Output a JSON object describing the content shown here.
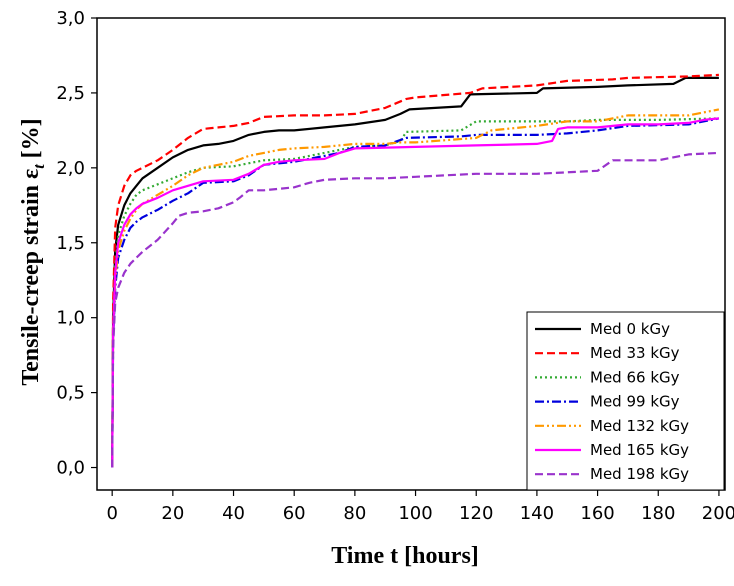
{
  "chart_data": {
    "type": "line",
    "xlabel": "Time t [hours]",
    "ylabel": "Tensile-creep strain ε",
    "ylabel_sub": "t",
    "ylabel_unit": " [%]",
    "xlim": [
      -5,
      202
    ],
    "ylim": [
      -0.15,
      3.0
    ],
    "xticks": [
      0,
      20,
      40,
      60,
      80,
      100,
      120,
      140,
      160,
      180,
      200
    ],
    "xtick_labels": [
      "0",
      "20",
      "40",
      "60",
      "80",
      "100",
      "120",
      "140",
      "160",
      "180",
      "200"
    ],
    "yticks": [
      0.0,
      0.5,
      1.0,
      1.5,
      2.0,
      2.5,
      3.0
    ],
    "ytick_labels": [
      "0,0",
      "0,5",
      "1,0",
      "1,5",
      "2,0",
      "2,5",
      "3,0"
    ],
    "grid": false,
    "legend_position": "bottom-right",
    "series": [
      {
        "name": "Med 0 kGy",
        "color": "#000000",
        "dash": "solid",
        "points": [
          [
            0,
            0.0
          ],
          [
            0.3,
            1.0
          ],
          [
            1,
            1.45
          ],
          [
            2,
            1.62
          ],
          [
            4,
            1.75
          ],
          [
            6,
            1.83
          ],
          [
            8,
            1.88
          ],
          [
            10,
            1.93
          ],
          [
            15,
            2.0
          ],
          [
            20,
            2.07
          ],
          [
            25,
            2.12
          ],
          [
            30,
            2.15
          ],
          [
            35,
            2.16
          ],
          [
            40,
            2.18
          ],
          [
            45,
            2.22
          ],
          [
            50,
            2.24
          ],
          [
            55,
            2.25
          ],
          [
            60,
            2.25
          ],
          [
            70,
            2.27
          ],
          [
            80,
            2.29
          ],
          [
            90,
            2.32
          ],
          [
            95,
            2.36
          ],
          [
            98,
            2.39
          ],
          [
            115,
            2.41
          ],
          [
            118,
            2.49
          ],
          [
            140,
            2.5
          ],
          [
            142,
            2.53
          ],
          [
            160,
            2.54
          ],
          [
            170,
            2.55
          ],
          [
            185,
            2.56
          ],
          [
            189,
            2.6
          ],
          [
            200,
            2.6
          ]
        ]
      },
      {
        "name": "Med 33 kGy",
        "color": "#ff0000",
        "dash": "dashed",
        "points": [
          [
            0,
            0.0
          ],
          [
            0.3,
            1.1
          ],
          [
            1,
            1.6
          ],
          [
            2,
            1.75
          ],
          [
            4,
            1.88
          ],
          [
            6,
            1.95
          ],
          [
            8,
            1.98
          ],
          [
            10,
            2.0
          ],
          [
            15,
            2.05
          ],
          [
            20,
            2.12
          ],
          [
            25,
            2.2
          ],
          [
            30,
            2.26
          ],
          [
            35,
            2.27
          ],
          [
            40,
            2.28
          ],
          [
            45,
            2.3
          ],
          [
            50,
            2.34
          ],
          [
            60,
            2.35
          ],
          [
            70,
            2.35
          ],
          [
            80,
            2.36
          ],
          [
            90,
            2.4
          ],
          [
            97,
            2.46
          ],
          [
            100,
            2.47
          ],
          [
            118,
            2.5
          ],
          [
            122,
            2.53
          ],
          [
            140,
            2.55
          ],
          [
            150,
            2.58
          ],
          [
            165,
            2.59
          ],
          [
            170,
            2.6
          ],
          [
            190,
            2.61
          ],
          [
            200,
            2.62
          ]
        ]
      },
      {
        "name": "Med 66 kGy",
        "color": "#33aa33",
        "dash": "dotted",
        "points": [
          [
            0,
            0.0
          ],
          [
            0.3,
            0.95
          ],
          [
            1,
            1.35
          ],
          [
            2,
            1.55
          ],
          [
            4,
            1.68
          ],
          [
            6,
            1.76
          ],
          [
            8,
            1.82
          ],
          [
            10,
            1.85
          ],
          [
            15,
            1.89
          ],
          [
            20,
            1.93
          ],
          [
            25,
            1.97
          ],
          [
            30,
            2.0
          ],
          [
            40,
            2.01
          ],
          [
            50,
            2.05
          ],
          [
            60,
            2.06
          ],
          [
            70,
            2.1
          ],
          [
            80,
            2.14
          ],
          [
            90,
            2.15
          ],
          [
            95,
            2.18
          ],
          [
            97,
            2.24
          ],
          [
            115,
            2.25
          ],
          [
            120,
            2.31
          ],
          [
            140,
            2.31
          ],
          [
            150,
            2.31
          ],
          [
            160,
            2.32
          ],
          [
            180,
            2.32
          ],
          [
            200,
            2.33
          ]
        ]
      },
      {
        "name": "Med 99 kGy",
        "color": "#0000dd",
        "dash": "dashdot",
        "points": [
          [
            0,
            0.0
          ],
          [
            0.3,
            0.85
          ],
          [
            1,
            1.2
          ],
          [
            2,
            1.4
          ],
          [
            4,
            1.52
          ],
          [
            6,
            1.6
          ],
          [
            8,
            1.64
          ],
          [
            10,
            1.67
          ],
          [
            15,
            1.72
          ],
          [
            20,
            1.78
          ],
          [
            25,
            1.83
          ],
          [
            30,
            1.9
          ],
          [
            40,
            1.91
          ],
          [
            45,
            1.95
          ],
          [
            50,
            2.02
          ],
          [
            60,
            2.04
          ],
          [
            70,
            2.08
          ],
          [
            75,
            2.1
          ],
          [
            80,
            2.14
          ],
          [
            90,
            2.15
          ],
          [
            97,
            2.2
          ],
          [
            115,
            2.21
          ],
          [
            120,
            2.22
          ],
          [
            140,
            2.22
          ],
          [
            150,
            2.23
          ],
          [
            160,
            2.25
          ],
          [
            170,
            2.28
          ],
          [
            190,
            2.29
          ],
          [
            200,
            2.33
          ]
        ]
      },
      {
        "name": "Med 132 kGy",
        "color": "#ff9900",
        "dash": "dashdotdot",
        "points": [
          [
            0,
            0.0
          ],
          [
            0.3,
            0.9
          ],
          [
            1,
            1.25
          ],
          [
            2,
            1.45
          ],
          [
            4,
            1.58
          ],
          [
            6,
            1.66
          ],
          [
            8,
            1.72
          ],
          [
            10,
            1.76
          ],
          [
            15,
            1.82
          ],
          [
            20,
            1.88
          ],
          [
            25,
            1.95
          ],
          [
            30,
            2.0
          ],
          [
            35,
            2.02
          ],
          [
            40,
            2.04
          ],
          [
            45,
            2.08
          ],
          [
            50,
            2.1
          ],
          [
            55,
            2.12
          ],
          [
            60,
            2.13
          ],
          [
            70,
            2.14
          ],
          [
            80,
            2.16
          ],
          [
            90,
            2.16
          ],
          [
            95,
            2.17
          ],
          [
            100,
            2.17
          ],
          [
            120,
            2.2
          ],
          [
            125,
            2.25
          ],
          [
            140,
            2.28
          ],
          [
            150,
            2.31
          ],
          [
            160,
            2.31
          ],
          [
            170,
            2.35
          ],
          [
            190,
            2.35
          ],
          [
            195,
            2.37
          ],
          [
            200,
            2.39
          ]
        ]
      },
      {
        "name": "Med 165 kGy",
        "color": "#ff00ff",
        "dash": "solid",
        "points": [
          [
            0,
            0.0
          ],
          [
            0.3,
            0.9
          ],
          [
            1,
            1.3
          ],
          [
            2,
            1.5
          ],
          [
            4,
            1.62
          ],
          [
            6,
            1.69
          ],
          [
            8,
            1.73
          ],
          [
            10,
            1.76
          ],
          [
            15,
            1.8
          ],
          [
            20,
            1.85
          ],
          [
            25,
            1.88
          ],
          [
            30,
            1.91
          ],
          [
            40,
            1.92
          ],
          [
            45,
            1.96
          ],
          [
            50,
            2.02
          ],
          [
            55,
            2.04
          ],
          [
            60,
            2.05
          ],
          [
            70,
            2.06
          ],
          [
            75,
            2.1
          ],
          [
            80,
            2.13
          ],
          [
            100,
            2.14
          ],
          [
            120,
            2.15
          ],
          [
            140,
            2.16
          ],
          [
            145,
            2.18
          ],
          [
            147,
            2.26
          ],
          [
            150,
            2.27
          ],
          [
            160,
            2.27
          ],
          [
            170,
            2.29
          ],
          [
            180,
            2.29
          ],
          [
            190,
            2.3
          ],
          [
            195,
            2.32
          ],
          [
            200,
            2.33
          ]
        ]
      },
      {
        "name": "Med 198 kGy",
        "color": "#9933cc",
        "dash": "dashed",
        "points": [
          [
            0,
            0.0
          ],
          [
            0.3,
            0.8
          ],
          [
            1,
            1.1
          ],
          [
            2,
            1.2
          ],
          [
            4,
            1.3
          ],
          [
            6,
            1.36
          ],
          [
            8,
            1.4
          ],
          [
            10,
            1.44
          ],
          [
            15,
            1.52
          ],
          [
            20,
            1.63
          ],
          [
            22,
            1.68
          ],
          [
            25,
            1.7
          ],
          [
            30,
            1.71
          ],
          [
            35,
            1.73
          ],
          [
            40,
            1.77
          ],
          [
            42,
            1.8
          ],
          [
            45,
            1.85
          ],
          [
            50,
            1.85
          ],
          [
            55,
            1.86
          ],
          [
            60,
            1.87
          ],
          [
            65,
            1.9
          ],
          [
            70,
            1.92
          ],
          [
            80,
            1.93
          ],
          [
            90,
            1.93
          ],
          [
            100,
            1.94
          ],
          [
            120,
            1.96
          ],
          [
            140,
            1.96
          ],
          [
            150,
            1.97
          ],
          [
            160,
            1.98
          ],
          [
            165,
            2.05
          ],
          [
            180,
            2.05
          ],
          [
            190,
            2.09
          ],
          [
            200,
            2.1
          ]
        ]
      }
    ]
  }
}
